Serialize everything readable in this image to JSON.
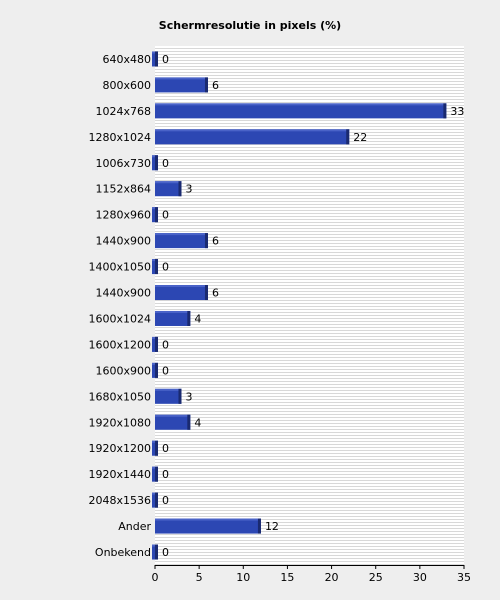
{
  "chart_data": {
    "type": "bar",
    "orientation": "horizontal",
    "title": "Schermresolutie in pixels (%)",
    "xlabel": "",
    "ylabel": "",
    "categories": [
      "640x480",
      "800x600",
      "1024x768",
      "1280x1024",
      "1006x730",
      "1152x864",
      "1280x960",
      "1440x900",
      "1400x1050",
      "1440x900",
      "1600x1024",
      "1600x1200",
      "1600x900",
      "1680x1050",
      "1920x1080",
      "1920x1200",
      "1920x1440",
      "2048x1536",
      "Ander",
      "Onbekend"
    ],
    "values": [
      0,
      6,
      33,
      22,
      0,
      3,
      0,
      6,
      0,
      6,
      4,
      0,
      0,
      3,
      4,
      0,
      0,
      0,
      12,
      0
    ],
    "xlim": [
      0,
      35
    ],
    "xticks": [
      0,
      5,
      10,
      15,
      20,
      25,
      30,
      35
    ],
    "grid": true,
    "colors": {
      "bar": "#2c47b3",
      "bar_edge": "#1a2a70",
      "bar_highlight": "#4a63c8",
      "plot_bg": "#ffffff",
      "grid": "#d8d8d8",
      "axis": "#000000"
    }
  }
}
